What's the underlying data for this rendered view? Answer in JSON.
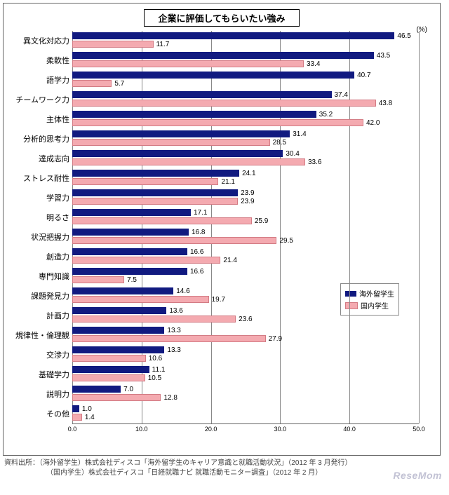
{
  "title": "企業に評価してもらいたい強み",
  "unit_label": "(%)",
  "xlim": [
    0.0,
    50.0
  ],
  "xtick_step": 10.0,
  "xticks": [
    "0.0",
    "10.0",
    "20.0",
    "30.0",
    "40.0",
    "50.0"
  ],
  "colors": {
    "series1": "#111a80",
    "series2": "#f4aab0",
    "series2_border": "#d37b84",
    "grid": "#888888",
    "background": "#ffffff"
  },
  "legend": {
    "series1": "海外留学生",
    "series2": "国内学生"
  },
  "categories": [
    {
      "label": "異文化対応力",
      "v1": 46.5,
      "v2": 11.7
    },
    {
      "label": "柔軟性",
      "v1": 43.5,
      "v2": 33.4
    },
    {
      "label": "語学力",
      "v1": 40.7,
      "v2": 5.7
    },
    {
      "label": "チームワーク力",
      "v1": 37.4,
      "v2": 43.8
    },
    {
      "label": "主体性",
      "v1": 35.2,
      "v2": 42.0
    },
    {
      "label": "分析的思考力",
      "v1": 31.4,
      "v2": 28.5
    },
    {
      "label": "達成志向",
      "v1": 30.4,
      "v2": 33.6
    },
    {
      "label": "ストレス耐性",
      "v1": 24.1,
      "v2": 21.1
    },
    {
      "label": "学習力",
      "v1": 23.9,
      "v2": 23.9
    },
    {
      "label": "明るさ",
      "v1": 17.1,
      "v2": 25.9
    },
    {
      "label": "状況把握力",
      "v1": 16.8,
      "v2": 29.5
    },
    {
      "label": "創造力",
      "v1": 16.6,
      "v2": 21.4
    },
    {
      "label": "専門知識",
      "v1": 16.6,
      "v2": 7.5
    },
    {
      "label": "課題発見力",
      "v1": 14.6,
      "v2": 19.7
    },
    {
      "label": "計画力",
      "v1": 13.6,
      "v2": 23.6
    },
    {
      "label": "規律性・倫理観",
      "v1": 13.3,
      "v2": 27.9
    },
    {
      "label": "交渉力",
      "v1": 13.3,
      "v2": 10.6
    },
    {
      "label": "基礎学力",
      "v1": 11.1,
      "v2": 10.5
    },
    {
      "label": "説明力",
      "v1": 7.0,
      "v2": 12.8
    },
    {
      "label": "その他",
      "v1": 1.0,
      "v2": 1.4
    }
  ],
  "footer": {
    "line1": "資料出所：（海外留学生）株式会社ディスコ「海外留学生のキャリア意識と就職活動状況」（2012 年 3 月発行）",
    "line2": "（国内学生）株式会社ディスコ「日経就職ナビ 就職活動モニター調査」（2012 年 2 月）"
  },
  "watermark": "ReseMom",
  "chart_type": "grouped_horizontal_bar",
  "label_fontsize": 11,
  "value_fontsize": 10
}
